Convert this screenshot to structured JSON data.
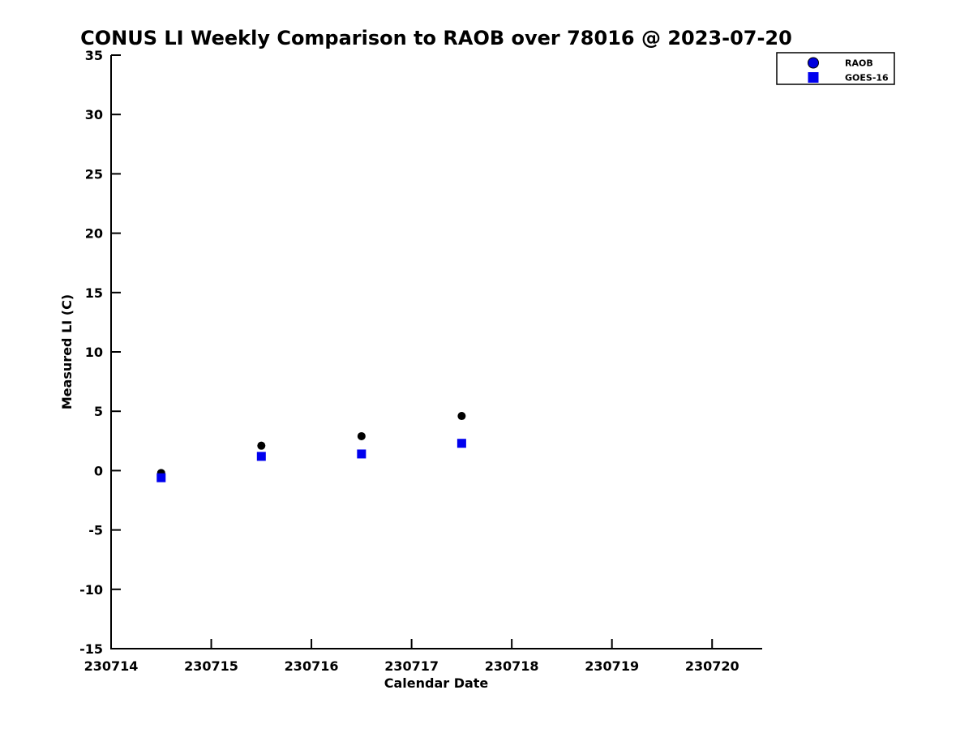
{
  "chart_data": {
    "type": "scatter",
    "title": "CONUS LI Weekly Comparison to RAOB over 78016 @ 2023-07-20",
    "xlabel": "Calendar Date",
    "ylabel": "Measured LI (C)",
    "xlim": [
      230714,
      230720.5
    ],
    "ylim": [
      -15,
      35
    ],
    "x_ticks": [
      230714,
      230715,
      230716,
      230717,
      230718,
      230719,
      230720
    ],
    "y_ticks": [
      -15,
      -10,
      -5,
      0,
      5,
      10,
      15,
      20,
      25,
      30,
      35
    ],
    "grid": false,
    "legend_position": "upper right",
    "x": [
      230714.5,
      230715.5,
      230716.5,
      230717.5
    ],
    "series": [
      {
        "name": "RAOB",
        "marker": "circle",
        "plot_color": "#000000",
        "legend_fill": "#0000dd",
        "legend_edge": "#000000",
        "values": [
          -0.2,
          2.1,
          2.9,
          4.6
        ]
      },
      {
        "name": "GOES-16",
        "marker": "square",
        "plot_color": "#0000ee",
        "legend_fill": "#0000ee",
        "legend_edge": "#0000ee",
        "values": [
          -0.6,
          1.2,
          1.4,
          2.3
        ]
      }
    ]
  },
  "colors": {
    "axis": "#000000",
    "background": "#ffffff",
    "legend_border": "#000000"
  }
}
